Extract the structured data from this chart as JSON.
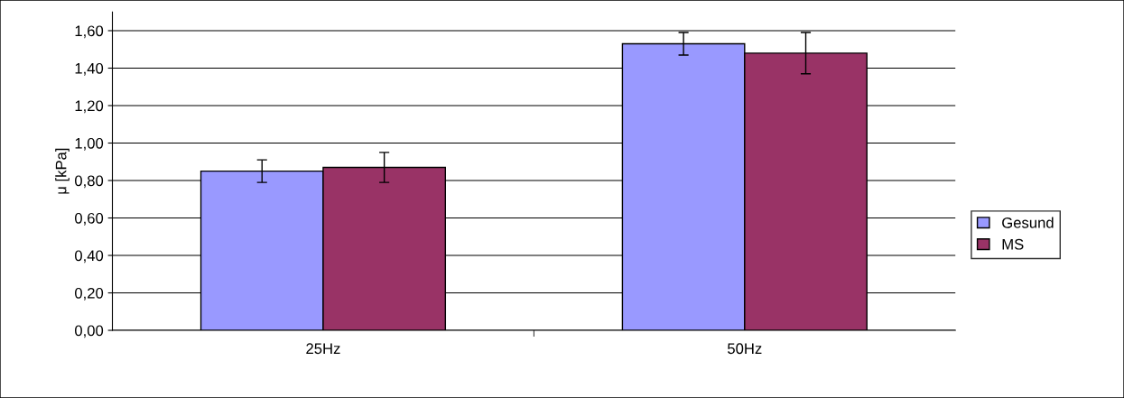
{
  "chart_data": {
    "type": "bar",
    "ylabel": "μ [kPa]",
    "categories": [
      "25Hz",
      "50Hz"
    ],
    "series": [
      {
        "name": "Gesund",
        "color": "#9999ff",
        "values": [
          0.85,
          1.53
        ],
        "errors": [
          0.06,
          0.06
        ]
      },
      {
        "name": "MS",
        "color": "#993366",
        "values": [
          0.87,
          1.48
        ],
        "errors": [
          0.08,
          0.11
        ]
      }
    ],
    "ylim": [
      0,
      1.7
    ],
    "yticks": [
      {
        "value": 0,
        "label": "0,00"
      },
      {
        "value": 0.2,
        "label": "0,20"
      },
      {
        "value": 0.4,
        "label": "0,40"
      },
      {
        "value": 0.6,
        "label": "0,60"
      },
      {
        "value": 0.8,
        "label": "0,80"
      },
      {
        "value": 1.0,
        "label": "1,00"
      },
      {
        "value": 1.2,
        "label": "1,20"
      },
      {
        "value": 1.4,
        "label": "1,40"
      },
      {
        "value": 1.6,
        "label": "1,60"
      }
    ],
    "grid": "y",
    "legend": "right"
  }
}
